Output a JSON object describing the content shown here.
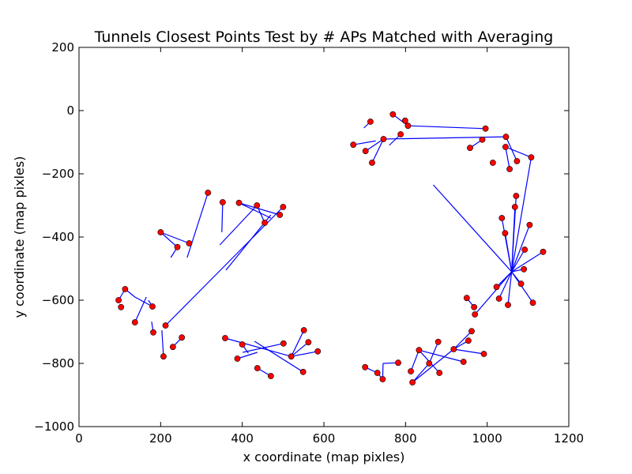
{
  "chart_data": {
    "type": "scatter",
    "title": "Tunnels Closest Points Test by # APs Matched with Averaging",
    "xlabel": "x coordinate (map pixles)",
    "ylabel": "y coordinate (map pixles)",
    "xlim": [
      0,
      1200
    ],
    "ylim": [
      -1000,
      200
    ],
    "xticks": [
      0,
      200,
      400,
      600,
      800,
      1000,
      1200
    ],
    "yticks": [
      -1000,
      -800,
      -600,
      -400,
      -200,
      0,
      200
    ],
    "grid": false,
    "legend": "none",
    "marker_color": "#ff0000",
    "marker_edge_color": "#000000",
    "line_color": "#0000ff",
    "points": [
      [
        97,
        -600
      ],
      [
        103,
        -622
      ],
      [
        113,
        -565
      ],
      [
        137,
        -670
      ],
      [
        180,
        -620
      ],
      [
        182,
        -702
      ],
      [
        200,
        -385
      ],
      [
        207,
        -778
      ],
      [
        212,
        -680
      ],
      [
        230,
        -748
      ],
      [
        241,
        -432
      ],
      [
        252,
        -718
      ],
      [
        270,
        -420
      ],
      [
        316,
        -260
      ],
      [
        352,
        -290
      ],
      [
        358,
        -720
      ],
      [
        388,
        -785
      ],
      [
        392,
        -292
      ],
      [
        400,
        -740
      ],
      [
        436,
        -300
      ],
      [
        437,
        -815
      ],
      [
        455,
        -355
      ],
      [
        470,
        -840
      ],
      [
        492,
        -330
      ],
      [
        500,
        -305
      ],
      [
        501,
        -737
      ],
      [
        520,
        -778
      ],
      [
        549,
        -827
      ],
      [
        551,
        -695
      ],
      [
        562,
        -733
      ],
      [
        585,
        -762
      ],
      [
        672,
        -108
      ],
      [
        701,
        -812
      ],
      [
        702,
        -128
      ],
      [
        714,
        -35
      ],
      [
        718,
        -165
      ],
      [
        731,
        -830
      ],
      [
        744,
        -850
      ],
      [
        746,
        -90
      ],
      [
        769,
        -12
      ],
      [
        782,
        -798
      ],
      [
        788,
        -75
      ],
      [
        799,
        -32
      ],
      [
        806,
        -48
      ],
      [
        813,
        -825
      ],
      [
        817,
        -860
      ],
      [
        833,
        -758
      ],
      [
        858,
        -800
      ],
      [
        880,
        -732
      ],
      [
        883,
        -830
      ],
      [
        918,
        -755
      ],
      [
        942,
        -795
      ],
      [
        950,
        -593
      ],
      [
        954,
        -728
      ],
      [
        958,
        -118
      ],
      [
        962,
        -698
      ],
      [
        968,
        -622
      ],
      [
        970,
        -645
      ],
      [
        988,
        -92
      ],
      [
        992,
        -770
      ],
      [
        996,
        -57
      ],
      [
        1014,
        -165
      ],
      [
        1023,
        -558
      ],
      [
        1029,
        -595
      ],
      [
        1036,
        -340
      ],
      [
        1044,
        -388
      ],
      [
        1045,
        -115
      ],
      [
        1046,
        -83
      ],
      [
        1051,
        -615
      ],
      [
        1055,
        -185
      ],
      [
        1068,
        -305
      ],
      [
        1071,
        -270
      ],
      [
        1073,
        -160
      ],
      [
        1083,
        -548
      ],
      [
        1090,
        -502
      ],
      [
        1092,
        -440
      ],
      [
        1104,
        -362
      ],
      [
        1108,
        -148
      ],
      [
        1112,
        -608
      ],
      [
        1137,
        -447
      ]
    ],
    "segments": [
      [
        [
          97,
          -600
        ],
        [
          113,
          -565
        ]
      ],
      [
        [
          113,
          -565
        ],
        [
          137,
          -590
        ]
      ],
      [
        [
          137,
          -590
        ],
        [
          180,
          -620
        ]
      ],
      [
        [
          137,
          -670
        ],
        [
          165,
          -590
        ]
      ],
      [
        [
          180,
          -620
        ],
        [
          170,
          -600
        ]
      ],
      [
        [
          182,
          -702
        ],
        [
          178,
          -668
        ]
      ],
      [
        [
          200,
          -385
        ],
        [
          241,
          -432
        ]
      ],
      [
        [
          200,
          -385
        ],
        [
          270,
          -420
        ]
      ],
      [
        [
          241,
          -432
        ],
        [
          225,
          -465
        ]
      ],
      [
        [
          207,
          -778
        ],
        [
          203,
          -695
        ]
      ],
      [
        [
          212,
          -680
        ],
        [
          500,
          -305
        ]
      ],
      [
        [
          230,
          -748
        ],
        [
          252,
          -718
        ]
      ],
      [
        [
          316,
          -260
        ],
        [
          265,
          -465
        ]
      ],
      [
        [
          352,
          -290
        ],
        [
          350,
          -385
        ]
      ],
      [
        [
          392,
          -292
        ],
        [
          470,
          -340
        ]
      ],
      [
        [
          392,
          -292
        ],
        [
          492,
          -330
        ]
      ],
      [
        [
          436,
          -300
        ],
        [
          455,
          -355
        ]
      ],
      [
        [
          436,
          -300
        ],
        [
          345,
          -425
        ]
      ],
      [
        [
          470,
          -330
        ],
        [
          360,
          -505
        ]
      ],
      [
        [
          358,
          -720
        ],
        [
          520,
          -778
        ]
      ],
      [
        [
          400,
          -740
        ],
        [
          415,
          -768
        ]
      ],
      [
        [
          388,
          -785
        ],
        [
          437,
          -765
        ]
      ],
      [
        [
          401,
          -765
        ],
        [
          501,
          -737
        ]
      ],
      [
        [
          437,
          -815
        ],
        [
          470,
          -840
        ]
      ],
      [
        [
          430,
          -730
        ],
        [
          549,
          -827
        ]
      ],
      [
        [
          520,
          -778
        ],
        [
          551,
          -695
        ]
      ],
      [
        [
          520,
          -778
        ],
        [
          562,
          -733
        ]
      ],
      [
        [
          520,
          -778
        ],
        [
          585,
          -762
        ]
      ],
      [
        [
          672,
          -108
        ],
        [
          727,
          -96
        ]
      ],
      [
        [
          702,
          -128
        ],
        [
          746,
          -90
        ]
      ],
      [
        [
          714,
          -35
        ],
        [
          698,
          -55
        ]
      ],
      [
        [
          718,
          -165
        ],
        [
          746,
          -90
        ]
      ],
      [
        [
          746,
          -90
        ],
        [
          1046,
          -83
        ]
      ],
      [
        [
          769,
          -12
        ],
        [
          806,
          -48
        ]
      ],
      [
        [
          806,
          -48
        ],
        [
          996,
          -57
        ]
      ],
      [
        [
          701,
          -812
        ],
        [
          731,
          -830
        ]
      ],
      [
        [
          731,
          -830
        ],
        [
          744,
          -850
        ]
      ],
      [
        [
          744,
          -850
        ],
        [
          745,
          -800
        ]
      ],
      [
        [
          745,
          -800
        ],
        [
          782,
          -798
        ]
      ],
      [
        [
          788,
          -75
        ],
        [
          760,
          -110
        ]
      ],
      [
        [
          813,
          -825
        ],
        [
          833,
          -758
        ]
      ],
      [
        [
          817,
          -860
        ],
        [
          858,
          -800
        ]
      ],
      [
        [
          833,
          -758
        ],
        [
          942,
          -795
        ]
      ],
      [
        [
          833,
          -758
        ],
        [
          883,
          -830
        ]
      ],
      [
        [
          858,
          -800
        ],
        [
          880,
          -732
        ]
      ],
      [
        [
          817,
          -860
        ],
        [
          918,
          -755
        ]
      ],
      [
        [
          918,
          -755
        ],
        [
          954,
          -728
        ]
      ],
      [
        [
          918,
          -755
        ],
        [
          962,
          -698
        ]
      ],
      [
        [
          918,
          -755
        ],
        [
          992,
          -770
        ]
      ],
      [
        [
          958,
          -118
        ],
        [
          988,
          -92
        ]
      ],
      [
        [
          1045,
          -115
        ],
        [
          1108,
          -148
        ]
      ],
      [
        [
          1045,
          -115
        ],
        [
          1055,
          -185
        ]
      ],
      [
        [
          1046,
          -83
        ],
        [
          1073,
          -160
        ]
      ],
      [
        [
          1060,
          -510
        ],
        [
          868,
          -235
        ]
      ],
      [
        [
          1060,
          -510
        ],
        [
          1036,
          -340
        ]
      ],
      [
        [
          1060,
          -510
        ],
        [
          1044,
          -388
        ]
      ],
      [
        [
          1060,
          -510
        ],
        [
          1071,
          -270
        ]
      ],
      [
        [
          1060,
          -510
        ],
        [
          1068,
          -305
        ]
      ],
      [
        [
          1060,
          -510
        ],
        [
          1108,
          -148
        ]
      ],
      [
        [
          1060,
          -510
        ],
        [
          1104,
          -362
        ]
      ],
      [
        [
          1060,
          -510
        ],
        [
          1092,
          -440
        ]
      ],
      [
        [
          1060,
          -510
        ],
        [
          1137,
          -447
        ]
      ],
      [
        [
          1060,
          -510
        ],
        [
          1090,
          -502
        ]
      ],
      [
        [
          1060,
          -510
        ],
        [
          1083,
          -548
        ]
      ],
      [
        [
          1060,
          -510
        ],
        [
          1112,
          -608
        ]
      ],
      [
        [
          1060,
          -510
        ],
        [
          1051,
          -615
        ]
      ],
      [
        [
          1060,
          -510
        ],
        [
          1023,
          -558
        ]
      ],
      [
        [
          1060,
          -510
        ],
        [
          1029,
          -595
        ]
      ],
      [
        [
          1060,
          -510
        ],
        [
          970,
          -645
        ]
      ],
      [
        [
          950,
          -593
        ],
        [
          968,
          -622
        ]
      ]
    ]
  }
}
